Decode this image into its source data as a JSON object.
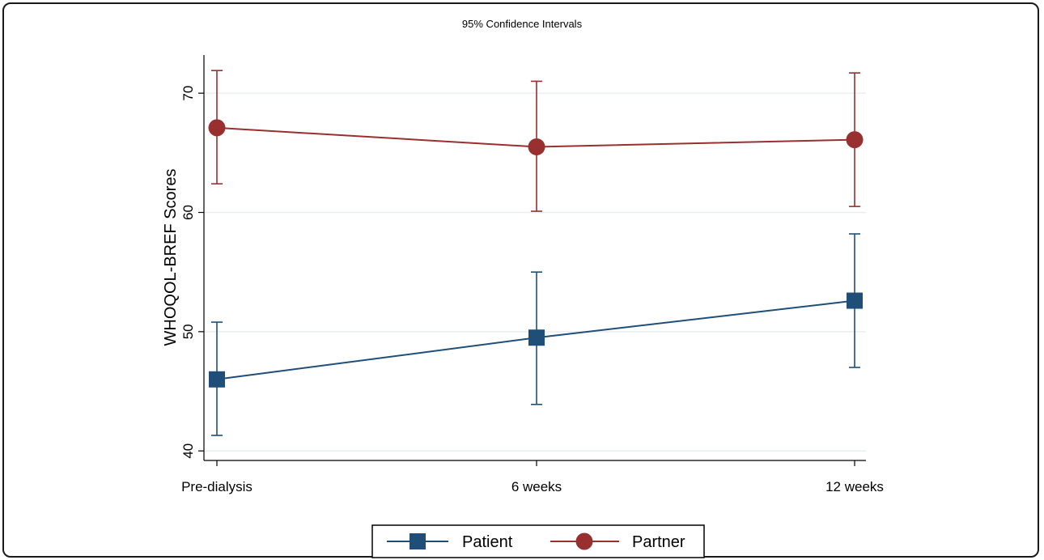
{
  "chart_data": {
    "type": "line",
    "title": "95% Confidence Intervals",
    "xlabel": "",
    "ylabel": "WHOQOL-BREF Scores",
    "categories": [
      "Pre-dialysis",
      "6 weeks",
      "12 weeks"
    ],
    "ylim": [
      39.2,
      73.2
    ],
    "yticks": [
      40,
      50,
      60,
      70
    ],
    "grid": true,
    "legend_position": "bottom",
    "series": [
      {
        "name": "Patient",
        "color": "#1f4e79",
        "marker": "square",
        "values": [
          46.0,
          49.5,
          52.6
        ],
        "ci_lower": [
          41.3,
          43.9,
          47.0
        ],
        "ci_upper": [
          50.8,
          55.0,
          58.2
        ]
      },
      {
        "name": "Partner",
        "color": "#98302f",
        "marker": "circle",
        "values": [
          67.1,
          65.5,
          66.1
        ],
        "ci_lower": [
          62.4,
          60.1,
          60.5
        ],
        "ci_upper": [
          71.9,
          71.0,
          71.7
        ]
      }
    ]
  }
}
